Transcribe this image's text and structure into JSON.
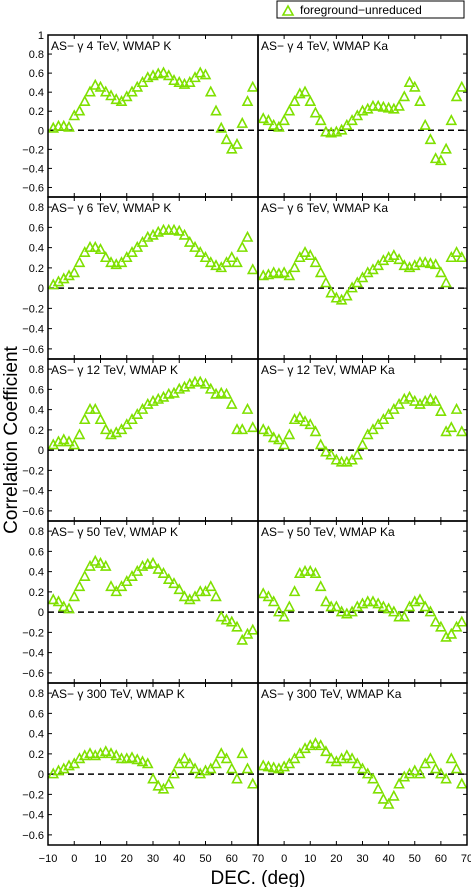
{
  "chart_data": {
    "type": "scatter",
    "xlabel": "DEC. (deg)",
    "ylabel": "Correlation Coefficient",
    "xlim": [
      -10,
      70
    ],
    "ylim_top_row": [
      -0.7,
      1.0
    ],
    "ylim_other_rows": [
      -0.7,
      0.9
    ],
    "x_ticks": [
      "−10",
      "0",
      "10",
      "20",
      "30",
      "40",
      "50",
      "60",
      "70"
    ],
    "y_ticks_top_row": [
      "1",
      "0.8",
      "0.6",
      "0.4",
      "0.2",
      "0",
      "−0.2",
      "−0.4",
      "−0.6"
    ],
    "y_ticks_other_rows": [
      "0.8",
      "0.6",
      "0.4",
      "0.2",
      "0",
      "−0.2",
      "−0.4",
      "−0.6"
    ],
    "zero_line": "dashed",
    "legend": {
      "placement": "top-right",
      "label": "foreground−unreduced",
      "marker": "triangle",
      "color": "#7fe000"
    },
    "marker_color": "#7fe000",
    "x": [
      -8,
      -6,
      -4,
      -2,
      0,
      2,
      4,
      6,
      8,
      10,
      12,
      14,
      16,
      18,
      20,
      22,
      24,
      26,
      28,
      30,
      32,
      34,
      36,
      38,
      40,
      42,
      44,
      46,
      48,
      50,
      52,
      54,
      56,
      58,
      60,
      62,
      64,
      66,
      68
    ],
    "panels": [
      {
        "title": "AS− γ 4 TeV, WMAP K",
        "values": [
          0.02,
          0.04,
          0.04,
          0.03,
          0.15,
          0.2,
          0.3,
          0.4,
          0.47,
          0.45,
          0.4,
          0.36,
          0.32,
          0.3,
          0.35,
          0.4,
          0.45,
          0.5,
          0.55,
          0.57,
          0.59,
          0.6,
          0.57,
          0.52,
          0.5,
          0.48,
          0.5,
          0.55,
          0.6,
          0.58,
          0.4,
          0.2,
          0.02,
          -0.1,
          -0.2,
          -0.15,
          0.07,
          0.3,
          0.45
        ]
      },
      {
        "title": "AS− γ 4 TeV, WMAP Ka",
        "values": [
          0.12,
          0.1,
          0.05,
          0.03,
          0.1,
          0.2,
          0.3,
          0.38,
          0.4,
          0.3,
          0.18,
          0.1,
          -0.02,
          -0.03,
          -0.02,
          0.0,
          0.05,
          0.1,
          0.15,
          0.2,
          0.22,
          0.25,
          0.25,
          0.24,
          0.23,
          0.22,
          0.25,
          0.35,
          0.5,
          0.45,
          0.3,
          0.05,
          -0.1,
          -0.3,
          -0.32,
          -0.2,
          0.1,
          0.35,
          0.45
        ]
      },
      {
        "title": "AS− γ 6 TeV, WMAP K",
        "values": [
          0.03,
          0.06,
          0.09,
          0.12,
          0.15,
          0.25,
          0.35,
          0.4,
          0.4,
          0.38,
          0.3,
          0.25,
          0.23,
          0.25,
          0.3,
          0.35,
          0.4,
          0.45,
          0.5,
          0.52,
          0.55,
          0.57,
          0.57,
          0.57,
          0.56,
          0.52,
          0.45,
          0.4,
          0.35,
          0.3,
          0.25,
          0.22,
          0.2,
          0.25,
          0.3,
          0.25,
          0.4,
          0.5,
          0.18
        ]
      },
      {
        "title": "AS− γ 6 TeV, WMAP Ka",
        "values": [
          0.12,
          0.13,
          0.15,
          0.14,
          0.15,
          0.12,
          0.2,
          0.3,
          0.35,
          0.32,
          0.25,
          0.15,
          0.05,
          -0.05,
          -0.1,
          -0.12,
          -0.08,
          0.0,
          0.05,
          0.1,
          0.15,
          0.18,
          0.22,
          0.27,
          0.3,
          0.32,
          0.28,
          0.22,
          0.2,
          0.22,
          0.25,
          0.25,
          0.24,
          0.23,
          0.15,
          0.05,
          0.3,
          0.35,
          0.3
        ]
      },
      {
        "title": "AS− γ 12 TeV, WMAP K",
        "values": [
          0.05,
          0.08,
          0.1,
          0.08,
          0.05,
          0.15,
          0.3,
          0.4,
          0.4,
          0.3,
          0.2,
          0.15,
          0.17,
          0.2,
          0.25,
          0.3,
          0.35,
          0.4,
          0.45,
          0.48,
          0.5,
          0.52,
          0.55,
          0.56,
          0.6,
          0.62,
          0.65,
          0.67,
          0.67,
          0.65,
          0.6,
          0.55,
          0.56,
          0.55,
          0.45,
          0.2,
          0.2,
          0.4,
          0.22
        ]
      },
      {
        "title": "AS− γ 12 TeV, WMAP Ka",
        "values": [
          0.2,
          0.18,
          0.12,
          0.1,
          0.05,
          0.15,
          0.3,
          0.32,
          0.28,
          0.25,
          0.18,
          0.05,
          -0.02,
          -0.05,
          -0.1,
          -0.12,
          -0.12,
          -0.1,
          -0.05,
          0.05,
          0.15,
          0.2,
          0.25,
          0.3,
          0.35,
          0.4,
          0.45,
          0.5,
          0.52,
          0.48,
          0.45,
          0.48,
          0.5,
          0.48,
          0.38,
          0.18,
          0.22,
          0.4,
          0.18
        ]
      },
      {
        "title": "AS− γ 50 TeV, WMAP K",
        "values": [
          0.12,
          0.1,
          0.05,
          0.03,
          0.15,
          0.25,
          0.35,
          0.45,
          0.5,
          0.48,
          0.45,
          0.25,
          0.2,
          0.25,
          0.3,
          0.35,
          0.4,
          0.45,
          0.47,
          0.48,
          0.42,
          0.38,
          0.32,
          0.28,
          0.22,
          0.15,
          0.12,
          0.15,
          0.2,
          0.2,
          0.25,
          0.15,
          -0.05,
          -0.08,
          -0.1,
          -0.15,
          -0.28,
          -0.22,
          -0.18
        ]
      },
      {
        "title": "AS− γ 50 TeV, WMAP Ka",
        "values": [
          0.18,
          0.15,
          0.1,
          0.0,
          -0.05,
          0.05,
          0.2,
          0.38,
          0.4,
          0.4,
          0.38,
          0.25,
          0.1,
          0.05,
          0.05,
          0.0,
          -0.02,
          0.0,
          0.05,
          0.08,
          0.1,
          0.1,
          0.08,
          0.05,
          0.03,
          0.0,
          -0.05,
          -0.05,
          0.05,
          0.1,
          0.12,
          0.05,
          0.0,
          -0.1,
          -0.15,
          -0.25,
          -0.22,
          -0.15,
          -0.1
        ]
      },
      {
        "title": "AS− γ 300 TeV, WMAP K",
        "values": [
          0.0,
          0.03,
          0.05,
          0.08,
          0.1,
          0.15,
          0.18,
          0.2,
          0.18,
          0.2,
          0.22,
          0.2,
          0.18,
          0.15,
          0.15,
          0.16,
          0.14,
          0.12,
          0.1,
          -0.05,
          -0.12,
          -0.15,
          -0.1,
          0.0,
          0.1,
          0.15,
          0.1,
          0.05,
          0.0,
          0.03,
          0.05,
          0.1,
          0.2,
          0.15,
          0.05,
          -0.05,
          0.2,
          0.05,
          -0.1
        ]
      },
      {
        "title": "AS− γ 300 TeV, WMAP Ka",
        "values": [
          0.08,
          0.07,
          0.06,
          0.05,
          0.07,
          0.1,
          0.15,
          0.2,
          0.25,
          0.28,
          0.3,
          0.28,
          0.22,
          0.15,
          0.12,
          0.15,
          0.18,
          0.15,
          0.1,
          0.05,
          0.0,
          -0.05,
          -0.15,
          -0.25,
          -0.3,
          -0.22,
          -0.1,
          -0.03,
          0.0,
          0.03,
          0.0,
          0.1,
          0.15,
          0.05,
          0.0,
          -0.05,
          0.15,
          0.05,
          -0.1
        ]
      }
    ]
  }
}
